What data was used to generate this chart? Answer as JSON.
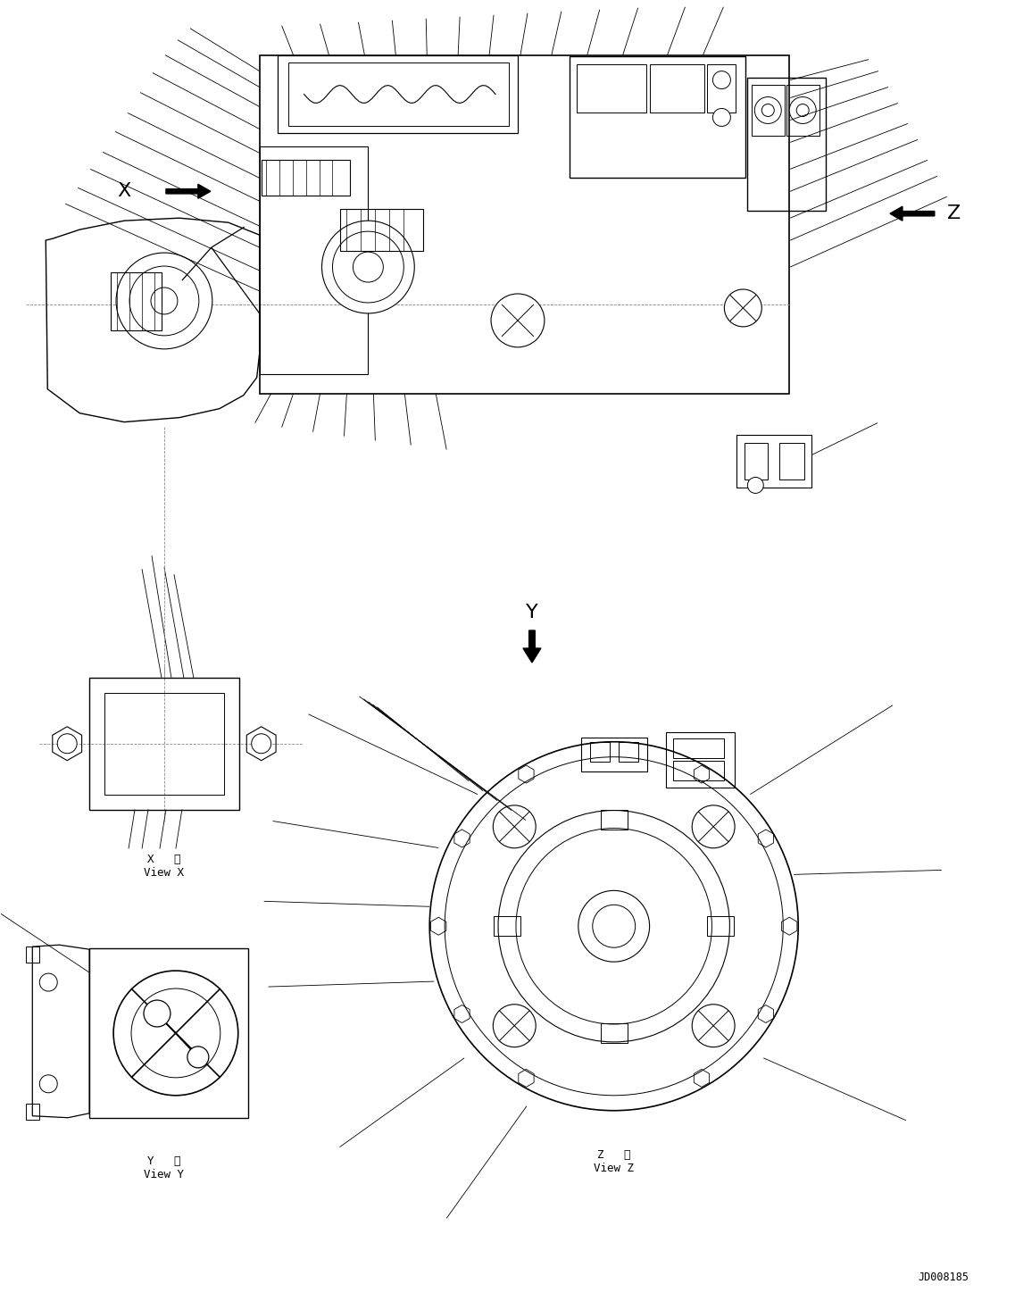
{
  "background_color": "#ffffff",
  "line_color": "#000000",
  "fig_width": 11.37,
  "fig_height": 14.57,
  "dpi": 100,
  "label_X": "X",
  "label_Y": "Y",
  "label_Z": "Z",
  "drawing_id": "JD008185"
}
